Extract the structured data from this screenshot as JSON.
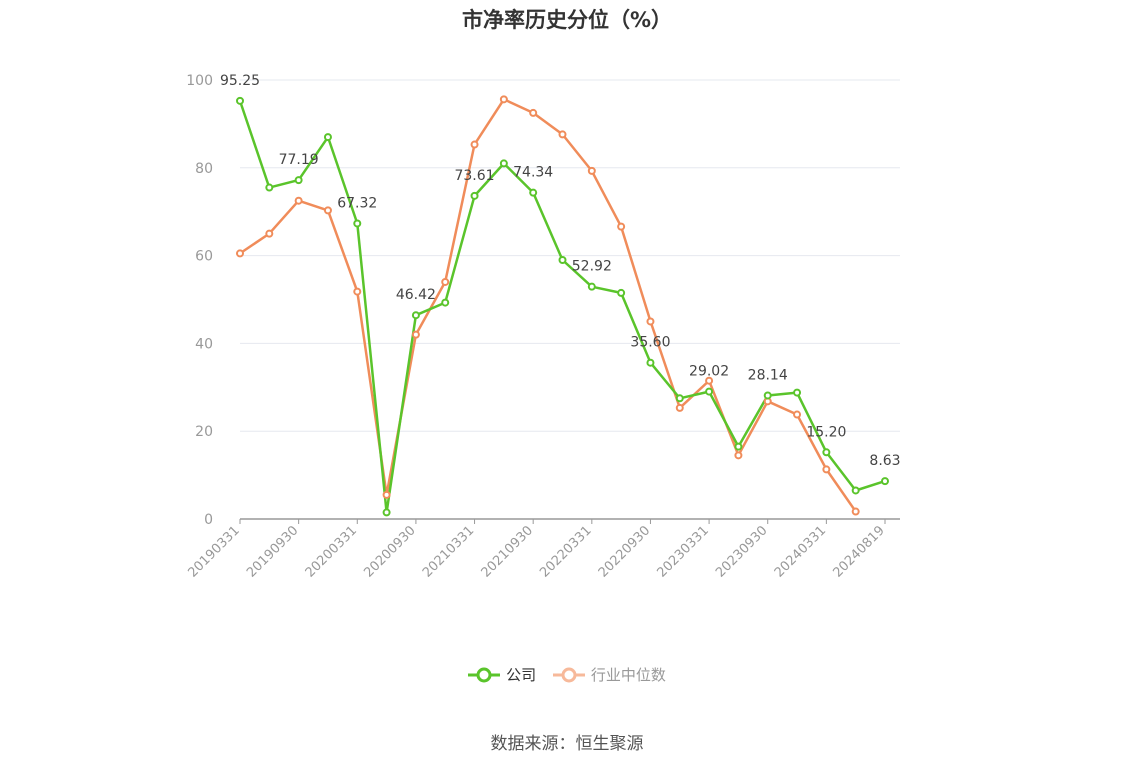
{
  "chart_data": {
    "type": "line",
    "title": "市净率历史分位（%）",
    "x": [
      "20190331",
      "20190630",
      "20190930",
      "20191231",
      "20200331",
      "20200630",
      "20200930",
      "20201231",
      "20210331",
      "20210630",
      "20210930",
      "20211231",
      "20220331",
      "20220630",
      "20220930",
      "20221231",
      "20230331",
      "20230630",
      "20230930",
      "20231231",
      "20240331",
      "20240630",
      "20240819"
    ],
    "x_tick_labels": [
      "20190331",
      "20190930",
      "20200331",
      "20200930",
      "20210331",
      "20210930",
      "20220331",
      "20220930",
      "20230331",
      "20230930",
      "20240331",
      "20240819"
    ],
    "ylim": [
      0,
      100
    ],
    "y_ticks": [
      0,
      20,
      40,
      60,
      80,
      100
    ],
    "grid": true,
    "legend_position": "bottom",
    "series": [
      {
        "name": "公司",
        "color": "#5ac42b",
        "values": [
          95.25,
          75.5,
          77.19,
          87.0,
          67.32,
          1.5,
          46.42,
          49.3,
          73.61,
          81.0,
          74.34,
          59.0,
          52.92,
          51.5,
          35.6,
          27.5,
          29.02,
          16.5,
          28.14,
          28.8,
          15.2,
          6.5,
          8.63
        ],
        "labels": {
          "0": "95.25",
          "2": "77.19",
          "4": "67.32",
          "6": "46.42",
          "8": "73.61",
          "10": "74.34",
          "12": "52.92",
          "14": "35.60",
          "16": "29.02",
          "18": "28.14",
          "20": "15.20",
          "22": "8.63"
        }
      },
      {
        "name": "行业中位数",
        "color": "#f08c5a",
        "values": [
          60.5,
          65.0,
          72.5,
          70.3,
          51.8,
          5.5,
          42.0,
          54.0,
          85.3,
          95.6,
          92.5,
          87.6,
          79.3,
          66.6,
          45.0,
          25.3,
          31.5,
          14.5,
          26.8,
          23.8,
          11.3,
          1.7,
          null
        ]
      }
    ]
  },
  "legend": {
    "company": "公司",
    "industry": "行业中位数"
  },
  "source": "数据来源：恒生聚源"
}
